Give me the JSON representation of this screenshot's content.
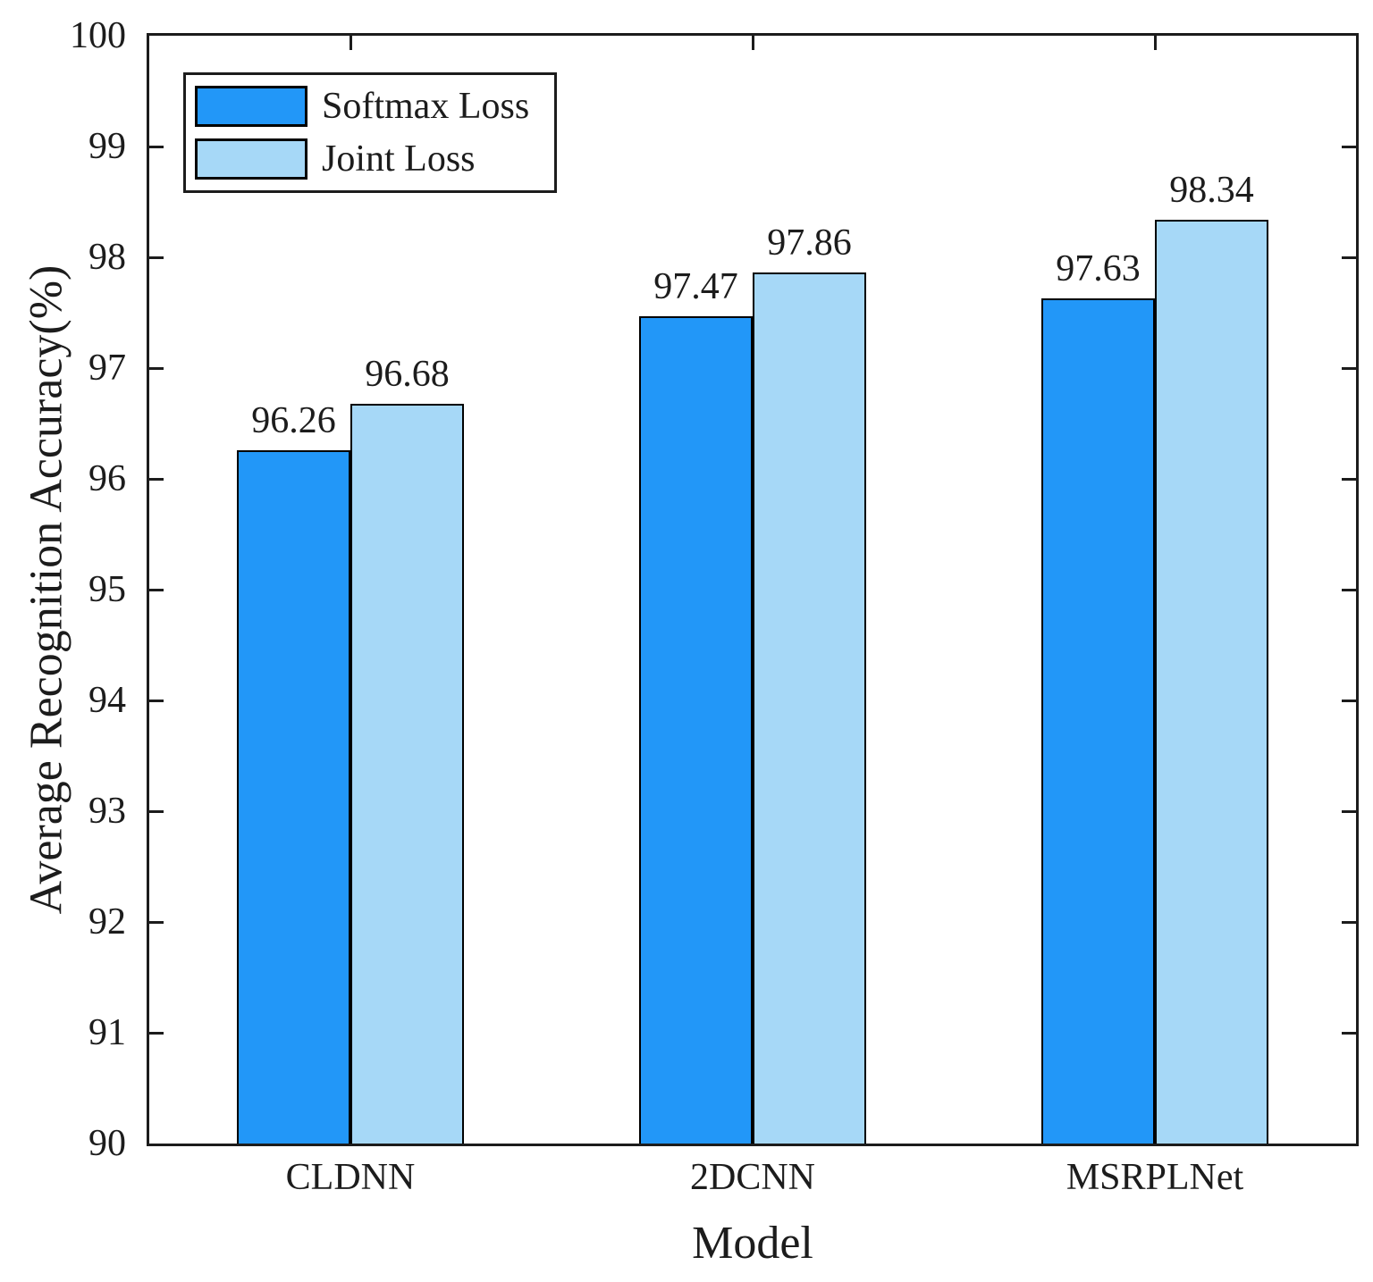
{
  "chart_data": {
    "type": "bar",
    "title": "",
    "xlabel": "Model",
    "ylabel": "Average Recognition Accuracy(%)",
    "categories": [
      "CLDNN",
      "2DCNN",
      "MSRPLNet"
    ],
    "series": [
      {
        "name": "Softmax Loss",
        "color": "#2297F8",
        "values": [
          96.26,
          97.47,
          97.63
        ]
      },
      {
        "name": "Joint Loss",
        "color": "#A6D8F7",
        "values": [
          96.68,
          97.86,
          98.34
        ]
      }
    ],
    "value_label_decimals": 2,
    "ylim": [
      90,
      100
    ],
    "ytick_step": 1,
    "grid": false,
    "legend_position": "top-left",
    "bar_edge_color": "#000000",
    "axis_color": "#1c1c1c"
  }
}
